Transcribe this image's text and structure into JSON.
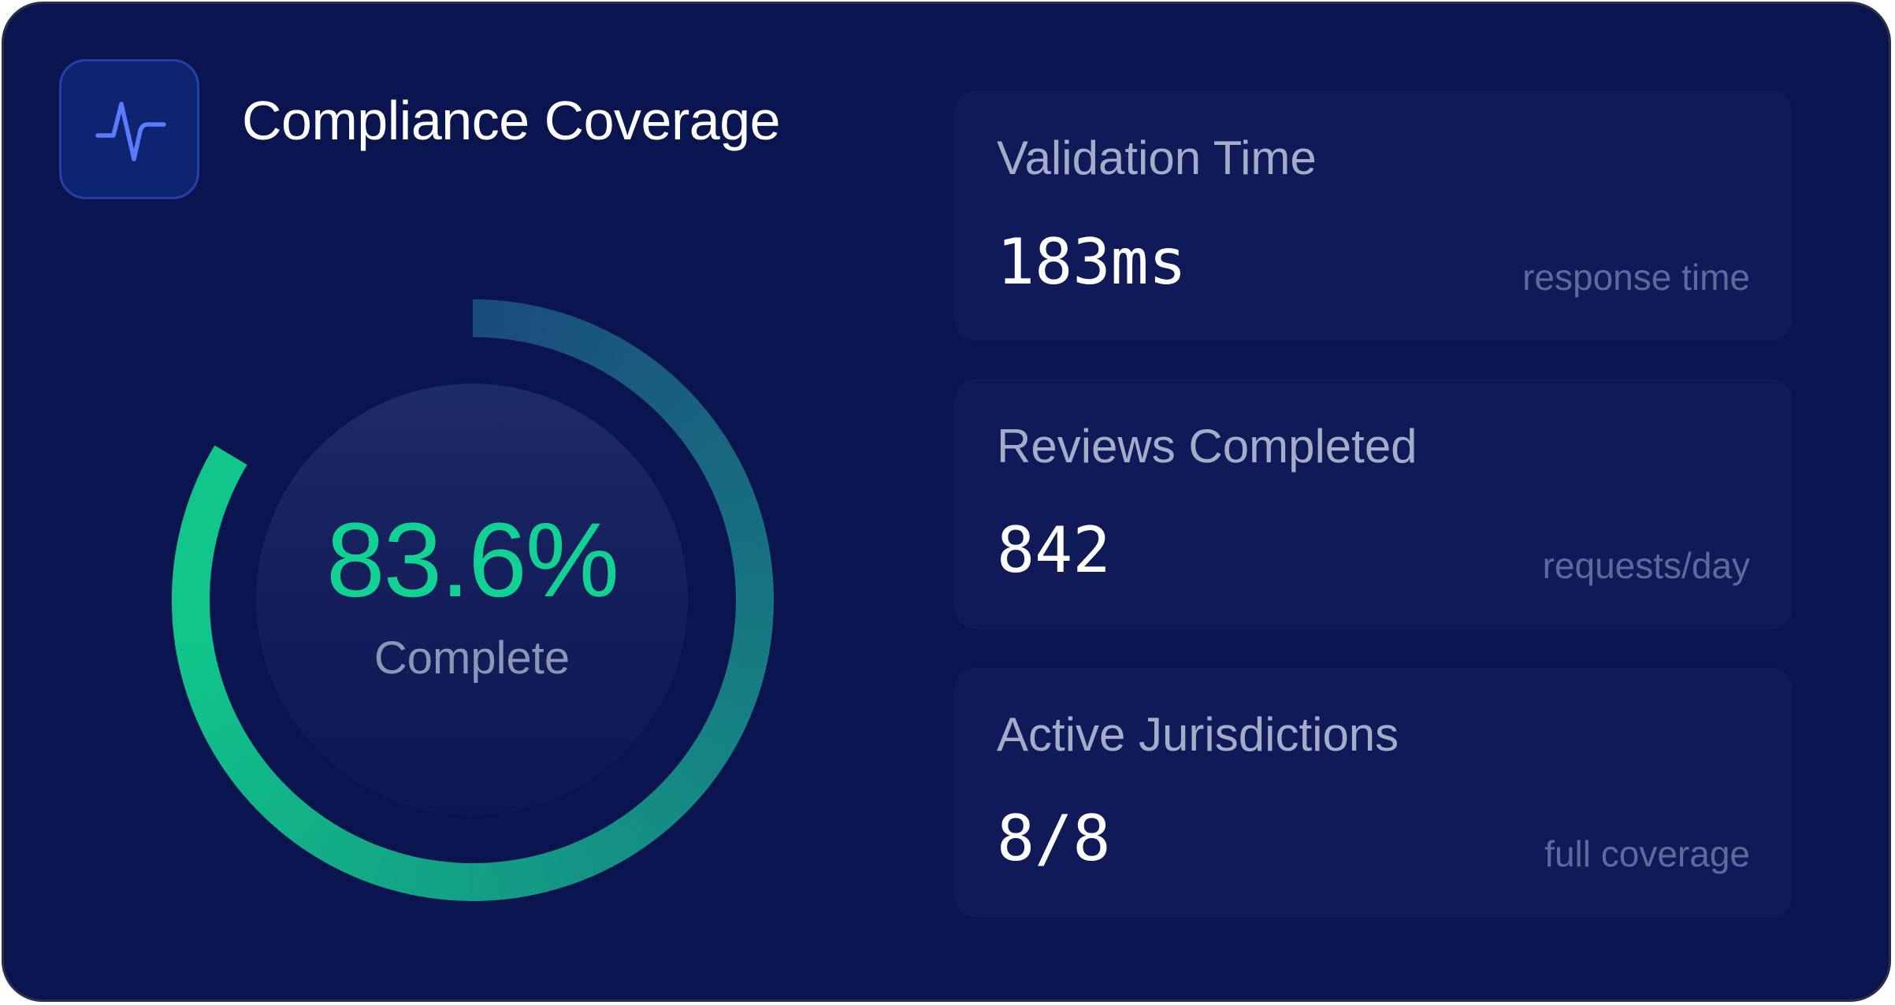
{
  "header": {
    "icon": "activity-pulse-icon",
    "title": "Compliance Coverage"
  },
  "gauge": {
    "value_text": "83.6%",
    "percent": 83.6,
    "label": "Complete",
    "gradient_start": "#10c68a",
    "gradient_end": "#1a4b7c"
  },
  "stats": [
    {
      "label": "Validation Time",
      "value": "183ms",
      "sub": "response time"
    },
    {
      "label": "Reviews Completed",
      "value": "842",
      "sub": "requests/day"
    },
    {
      "label": "Active Jurisdictions",
      "value": "8/8",
      "sub": "full coverage"
    }
  ],
  "colors": {
    "background": "#0a1550",
    "accent_green": "#10d393",
    "icon_stroke": "#5b7bff",
    "card": "#111a59"
  }
}
